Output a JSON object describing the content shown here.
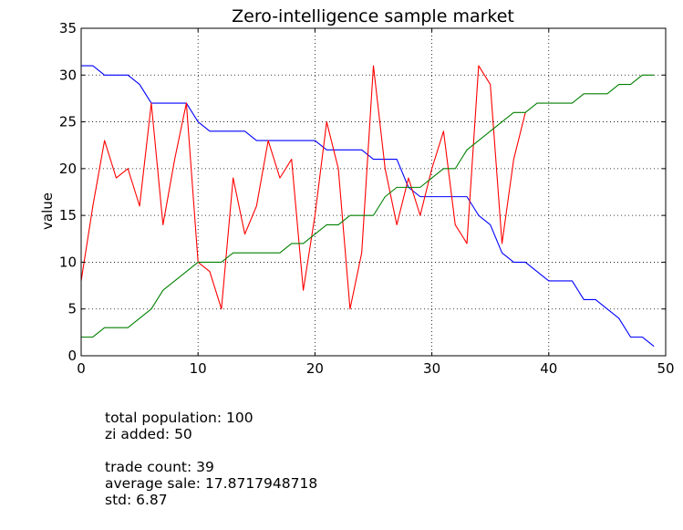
{
  "chart_data": {
    "type": "line",
    "title": "Zero-intelligence sample market",
    "xlabel": "",
    "ylabel": "value",
    "xlim": [
      0,
      50
    ],
    "ylim": [
      0,
      35
    ],
    "x_ticks": [
      0,
      10,
      20,
      30,
      40,
      50
    ],
    "y_ticks": [
      0,
      5,
      10,
      15,
      20,
      25,
      30,
      35
    ],
    "grid": true,
    "legend": "none",
    "series": [
      {
        "color": "#0000ff",
        "x": [
          0,
          1,
          2,
          3,
          4,
          5,
          6,
          7,
          8,
          9,
          10,
          11,
          12,
          13,
          14,
          15,
          16,
          17,
          18,
          19,
          20,
          21,
          22,
          23,
          24,
          25,
          26,
          27,
          28,
          29,
          30,
          31,
          32,
          33,
          34,
          35,
          36,
          37,
          38,
          39,
          40,
          41,
          42,
          43,
          44,
          45,
          46,
          47,
          48,
          49
        ],
        "values": [
          31,
          31,
          30,
          30,
          30,
          29,
          27,
          27,
          27,
          27,
          25,
          24,
          24,
          24,
          24,
          23,
          23,
          23,
          23,
          23,
          23,
          22,
          22,
          22,
          22,
          21,
          21,
          21,
          18,
          17,
          17,
          17,
          17,
          17,
          15,
          14,
          11,
          10,
          10,
          9,
          8,
          8,
          8,
          6,
          6,
          5,
          4,
          2,
          2,
          1
        ]
      },
      {
        "color": "#ff0000",
        "x": [
          0,
          1,
          2,
          3,
          4,
          5,
          6,
          7,
          8,
          9,
          10,
          11,
          12,
          13,
          14,
          15,
          16,
          17,
          18,
          19,
          20,
          21,
          22,
          23,
          24,
          25,
          26,
          27,
          28,
          29,
          30,
          31,
          32,
          33,
          34,
          35,
          36,
          37,
          38
        ],
        "values": [
          8,
          16,
          23,
          19,
          20,
          16,
          27,
          14,
          21,
          27,
          10,
          9,
          5,
          19,
          13,
          16,
          23,
          19,
          21,
          7,
          15,
          25,
          20,
          5,
          11,
          31,
          20,
          14,
          19,
          15,
          20,
          24,
          14,
          12,
          31,
          29,
          12,
          21,
          26
        ]
      },
      {
        "color": "#008000",
        "x": [
          0,
          1,
          2,
          3,
          4,
          5,
          6,
          7,
          8,
          9,
          10,
          11,
          12,
          13,
          14,
          15,
          16,
          17,
          18,
          19,
          20,
          21,
          22,
          23,
          24,
          25,
          26,
          27,
          28,
          29,
          30,
          31,
          32,
          33,
          34,
          35,
          36,
          37,
          38,
          39,
          40,
          41,
          42,
          43,
          44,
          45,
          46,
          47,
          48,
          49
        ],
        "values": [
          2,
          2,
          3,
          3,
          3,
          4,
          5,
          7,
          8,
          9,
          10,
          10,
          10,
          11,
          11,
          11,
          11,
          11,
          12,
          12,
          13,
          14,
          14,
          15,
          15,
          15,
          17,
          18,
          18,
          18,
          19,
          20,
          20,
          22,
          23,
          24,
          25,
          26,
          26,
          27,
          27,
          27,
          27,
          28,
          28,
          28,
          29,
          29,
          30,
          30
        ]
      }
    ]
  },
  "stats": {
    "line1": "total population: 100",
    "line2": "zi added: 50",
    "line3": "trade count: 39",
    "line4": "average sale: 17.8717948718",
    "line5": "std: 6.87"
  }
}
